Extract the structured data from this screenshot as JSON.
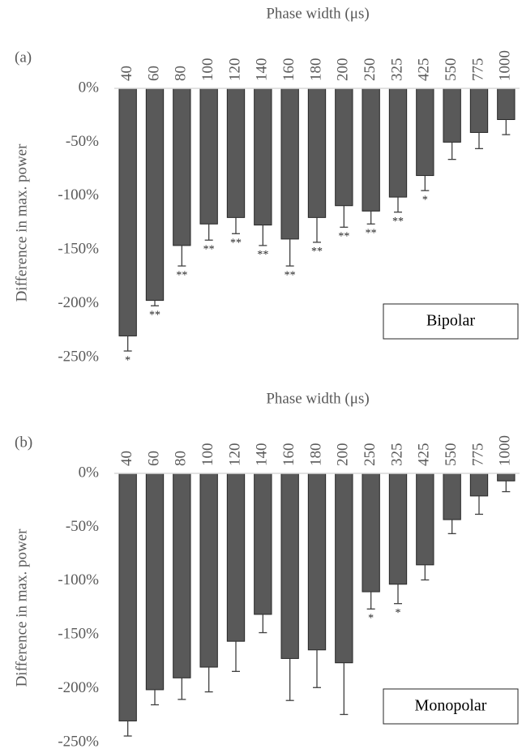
{
  "chart_data": [
    {
      "type": "bar",
      "panel_label": "(a)",
      "x_label": "Phase width (μs)",
      "y_label": "Difference in max. power",
      "categories": [
        "40",
        "60",
        "80",
        "100",
        "120",
        "140",
        "160",
        "180",
        "200",
        "250",
        "325",
        "425",
        "550",
        "775",
        "1000"
      ],
      "series": [
        {
          "name": "Bipolar",
          "color": "#595959",
          "values": [
            -230,
            -197,
            -146,
            -126,
            -120,
            -127,
            -140,
            -120,
            -109,
            -114,
            -101,
            -81,
            -50,
            -41,
            -29
          ],
          "errors": [
            14,
            5,
            19,
            15,
            15,
            19,
            25,
            23,
            20,
            12,
            14,
            14,
            16,
            15,
            14
          ],
          "annotations": [
            "*",
            "**",
            "**",
            "**",
            "**",
            "**",
            "**",
            "**",
            "**",
            "**",
            "**",
            "*",
            null,
            null,
            null
          ]
        }
      ],
      "ylim": [
        -250,
        0
      ],
      "yticks": [
        {
          "value": 0,
          "label": "0%"
        },
        {
          "value": -50,
          "label": "-50%"
        },
        {
          "value": -100,
          "label": "-100%"
        },
        {
          "value": -150,
          "label": "-150%"
        },
        {
          "value": -200,
          "label": "-200%"
        },
        {
          "value": -250,
          "label": "-250%"
        }
      ]
    },
    {
      "type": "bar",
      "panel_label": "(b)",
      "x_label": "Phase width (μs)",
      "y_label": "Difference in max. power",
      "categories": [
        "40",
        "60",
        "80",
        "100",
        "120",
        "140",
        "160",
        "180",
        "200",
        "250",
        "325",
        "425",
        "550",
        "775",
        "1000"
      ],
      "series": [
        {
          "name": "Monopolar",
          "color": "#595959",
          "values": [
            -230,
            -201,
            -190,
            -180,
            -156,
            -131,
            -172,
            -164,
            -176,
            -110,
            -103,
            -85,
            -43,
            -21,
            -7
          ],
          "errors": [
            14,
            14,
            20,
            23,
            28,
            17,
            39,
            35,
            48,
            16,
            18,
            14,
            13,
            17,
            10
          ],
          "annotations": [
            null,
            null,
            null,
            null,
            null,
            null,
            null,
            null,
            null,
            "*",
            "*",
            null,
            null,
            null,
            null
          ]
        }
      ],
      "ylim": [
        -250,
        0
      ],
      "yticks": [
        {
          "value": 0,
          "label": "0%"
        },
        {
          "value": -50,
          "label": "-50%"
        },
        {
          "value": -100,
          "label": "-100%"
        },
        {
          "value": -150,
          "label": "-150%"
        },
        {
          "value": -200,
          "label": "-200%"
        },
        {
          "value": -250,
          "label": "-250%"
        }
      ]
    }
  ]
}
